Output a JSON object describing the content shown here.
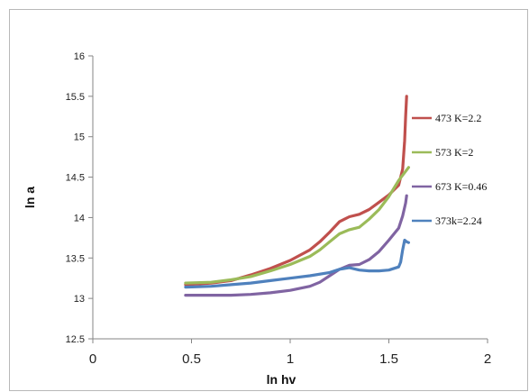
{
  "chart_data": {
    "type": "line",
    "title": "",
    "xlabel": "ln hv",
    "ylabel": "ln a",
    "xlim": [
      0,
      2
    ],
    "ylim": [
      12.5,
      16
    ],
    "xticks": [
      0,
      0.5,
      1,
      1.5,
      2
    ],
    "xtick_labels": [
      "0",
      "0.5",
      "1",
      "1.5",
      "2"
    ],
    "yticks": [
      12.5,
      13,
      13.5,
      14,
      14.5,
      15,
      15.5,
      16
    ],
    "ytick_labels": [
      "12.5",
      "13",
      "13.5",
      "14",
      "14.5",
      "15",
      "15.5",
      "16"
    ],
    "grid": false,
    "legend_position": "right",
    "series": [
      {
        "name": "473 K=2.2",
        "color": "#c0504d",
        "x": [
          0.47,
          0.6,
          0.7,
          0.8,
          0.9,
          1.0,
          1.1,
          1.15,
          1.2,
          1.25,
          1.3,
          1.35,
          1.4,
          1.45,
          1.5,
          1.55,
          1.57,
          1.58,
          1.585,
          1.59
        ],
        "y": [
          13.17,
          13.19,
          13.22,
          13.29,
          13.37,
          13.47,
          13.6,
          13.7,
          13.82,
          13.95,
          14.01,
          14.04,
          14.1,
          14.19,
          14.28,
          14.4,
          14.6,
          14.95,
          15.25,
          15.5
        ]
      },
      {
        "name": "573 K=2",
        "color": "#9bbb59",
        "x": [
          0.47,
          0.6,
          0.7,
          0.8,
          0.9,
          1.0,
          1.1,
          1.15,
          1.2,
          1.25,
          1.3,
          1.35,
          1.4,
          1.45,
          1.5,
          1.55,
          1.6
        ],
        "y": [
          13.19,
          13.2,
          13.23,
          13.27,
          13.34,
          13.42,
          13.52,
          13.6,
          13.7,
          13.8,
          13.85,
          13.88,
          13.98,
          14.1,
          14.26,
          14.46,
          14.62
        ]
      },
      {
        "name": "673 K=0.46",
        "color": "#8064a2",
        "x": [
          0.47,
          0.6,
          0.7,
          0.8,
          0.9,
          1.0,
          1.1,
          1.15,
          1.2,
          1.25,
          1.3,
          1.35,
          1.4,
          1.45,
          1.5,
          1.55,
          1.57,
          1.585,
          1.59
        ],
        "y": [
          13.04,
          13.04,
          13.04,
          13.05,
          13.07,
          13.1,
          13.15,
          13.2,
          13.28,
          13.36,
          13.41,
          13.42,
          13.48,
          13.58,
          13.72,
          13.87,
          14.02,
          14.18,
          14.27
        ]
      },
      {
        "name": "373k=2.24",
        "color": "#4f81bd",
        "x": [
          0.47,
          0.6,
          0.7,
          0.8,
          0.9,
          1.0,
          1.1,
          1.2,
          1.25,
          1.3,
          1.35,
          1.4,
          1.45,
          1.5,
          1.55,
          1.56,
          1.57,
          1.58,
          1.59,
          1.6
        ],
        "y": [
          13.14,
          13.15,
          13.17,
          13.19,
          13.22,
          13.25,
          13.28,
          13.32,
          13.36,
          13.38,
          13.35,
          13.34,
          13.34,
          13.35,
          13.39,
          13.45,
          13.6,
          13.72,
          13.7,
          13.69
        ]
      }
    ]
  }
}
